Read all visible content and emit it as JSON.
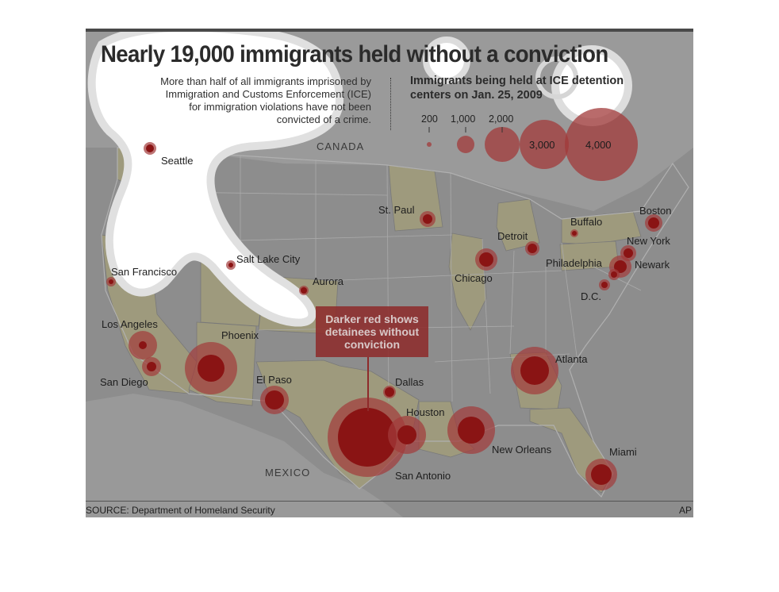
{
  "headline": "Nearly 19,000 immigrants held without a conviction",
  "subtitle_lines": [
    "More than half of all immigrants imprisoned by",
    "Immigration and Customs Enforcement (ICE)",
    "for immigration violations have not been",
    "convicted of a crime."
  ],
  "legend": {
    "title_lines": [
      "Immigrants being held at ICE detention",
      "centers on Jan. 25, 2009"
    ],
    "sizes": [
      {
        "label": "200",
        "value": 200
      },
      {
        "label": "1,000",
        "value": 1000
      },
      {
        "label": "2,000",
        "value": 2000
      },
      {
        "label": "3,000",
        "value": 3000
      },
      {
        "label": "4,000",
        "value": 4000
      }
    ]
  },
  "regions": {
    "canada": "CANADA",
    "mexico": "MEXICO"
  },
  "callout": [
    "Darker red shows",
    "detainees without",
    "conviction"
  ],
  "cities": [
    {
      "name": "Seattle"
    },
    {
      "name": "San Francisco"
    },
    {
      "name": "Los Angeles"
    },
    {
      "name": "San Diego"
    },
    {
      "name": "Phoenix"
    },
    {
      "name": "Salt Lake City"
    },
    {
      "name": "Aurora"
    },
    {
      "name": "El Paso"
    },
    {
      "name": "San Antonio"
    },
    {
      "name": "Dallas"
    },
    {
      "name": "Houston"
    },
    {
      "name": "New Orleans"
    },
    {
      "name": "Atlanta"
    },
    {
      "name": "Miami"
    },
    {
      "name": "St. Paul"
    },
    {
      "name": "Chicago"
    },
    {
      "name": "Detroit"
    },
    {
      "name": "Buffalo"
    },
    {
      "name": "Boston"
    },
    {
      "name": "New York"
    },
    {
      "name": "Newark"
    },
    {
      "name": "Philadelphia"
    },
    {
      "name": "D.C."
    }
  ],
  "footer": {
    "source": "SOURCE: Department of Homeland Security",
    "credit": "AP"
  },
  "colors": {
    "bubble_outer": "#a23a3a",
    "bubble_inner": "#8a1414",
    "land_highlight": "#a8a27a",
    "background": "#8f8f8f"
  }
}
